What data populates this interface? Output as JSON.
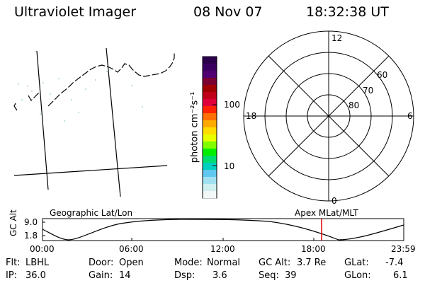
{
  "header": {
    "instrument": "Ultraviolet Imager",
    "date": "08 Nov 07",
    "time": "18:32:38 UT"
  },
  "colorbar": {
    "unit_label": "photon cm⁻²s⁻¹",
    "ticks": [
      "100",
      "10"
    ],
    "colors": [
      "#2a004a",
      "#3a0060",
      "#500070",
      "#7a0030",
      "#a00000",
      "#c00018",
      "#e0003a",
      "#ff2200",
      "#ff7000",
      "#ffaa00",
      "#ffdd00",
      "#e8ff00",
      "#80ff00",
      "#00ee00",
      "#00dd70",
      "#00d0c0",
      "#60c8f0",
      "#a0e0f0",
      "#d0f0f0",
      "#f2f8f8"
    ]
  },
  "polar_plot": {
    "mlt_labels": {
      "top": "12",
      "left": "18",
      "right": "6",
      "bottom": "0"
    },
    "lat_labels": [
      "60",
      "70",
      "80"
    ]
  },
  "timeline": {
    "left_caption": "Geographic Lat/Lon",
    "right_caption": "Apex  MLat/MLT",
    "y_axis_label": "GC Alt",
    "y_ticks": [
      "9.0",
      "1.8"
    ],
    "x_ticks": [
      "00:00",
      "06:00",
      "12:00",
      "18:00",
      "23:59"
    ],
    "current_time_marker_color": "#dd0000"
  },
  "info_table": [
    [
      {
        "k": "Flt:",
        "v": "LBHL"
      },
      {
        "k": "Door:",
        "v": "Open"
      },
      {
        "k": "Mode:",
        "v": "Normal"
      },
      {
        "k": "GC Alt:",
        "v": "3.7 Re"
      },
      {
        "k": "GLat:",
        "v": "-7.4"
      }
    ],
    [
      {
        "k": "IP:",
        "v": "36.0"
      },
      {
        "k": "Gain:",
        "v": "14"
      },
      {
        "k": "Dsp:",
        "v": "3.6"
      },
      {
        "k": "Seq:",
        "v": "39"
      },
      {
        "k": "GLon:",
        "v": "6.1"
      }
    ]
  ]
}
